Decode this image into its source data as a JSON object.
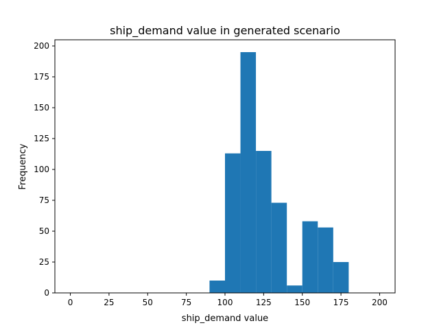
{
  "chart_data": {
    "type": "bar",
    "subtype": "histogram",
    "title": "ship_demand value in generated scenario",
    "xlabel": "ship_demand value",
    "ylabel": "Frequency",
    "xlim": [
      -10,
      210
    ],
    "ylim": [
      0,
      205
    ],
    "xticks": [
      0,
      25,
      50,
      75,
      100,
      125,
      150,
      175,
      200
    ],
    "yticks": [
      0,
      25,
      50,
      75,
      100,
      125,
      150,
      175,
      200
    ],
    "bin_edges": [
      90,
      100,
      110,
      120,
      130,
      140,
      150,
      160,
      170,
      180
    ],
    "values": [
      10,
      113,
      195,
      115,
      73,
      6,
      58,
      53,
      25
    ],
    "bar_color": "#1f77b4",
    "grid": false,
    "legend": "none"
  }
}
